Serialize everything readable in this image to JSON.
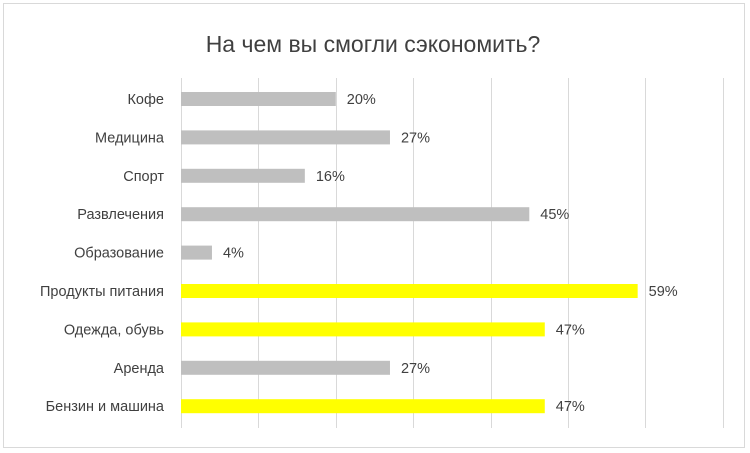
{
  "chart_data": {
    "type": "bar",
    "orientation": "horizontal",
    "title": "На чем вы смогли сэкономить?",
    "categories": [
      "Кофе",
      "Медицина",
      "Спорт",
      "Развлечения",
      "Образование",
      "Продукты питания",
      "Одежда, обувь",
      "Аренда",
      "Бензин и машина"
    ],
    "values": [
      20,
      27,
      16,
      45,
      4,
      59,
      47,
      27,
      47
    ],
    "labels": [
      "20%",
      "27%",
      "16%",
      "45%",
      "4%",
      "59%",
      "47%",
      "27%",
      "47%"
    ],
    "xlim": [
      0,
      70
    ],
    "grid": true,
    "colors": {
      "default": "#bfbfbf",
      "highlight": "#ffff00"
    },
    "highlighted": [
      "Продукты питания",
      "Одежда, обувь",
      "Бензин и машина"
    ]
  }
}
